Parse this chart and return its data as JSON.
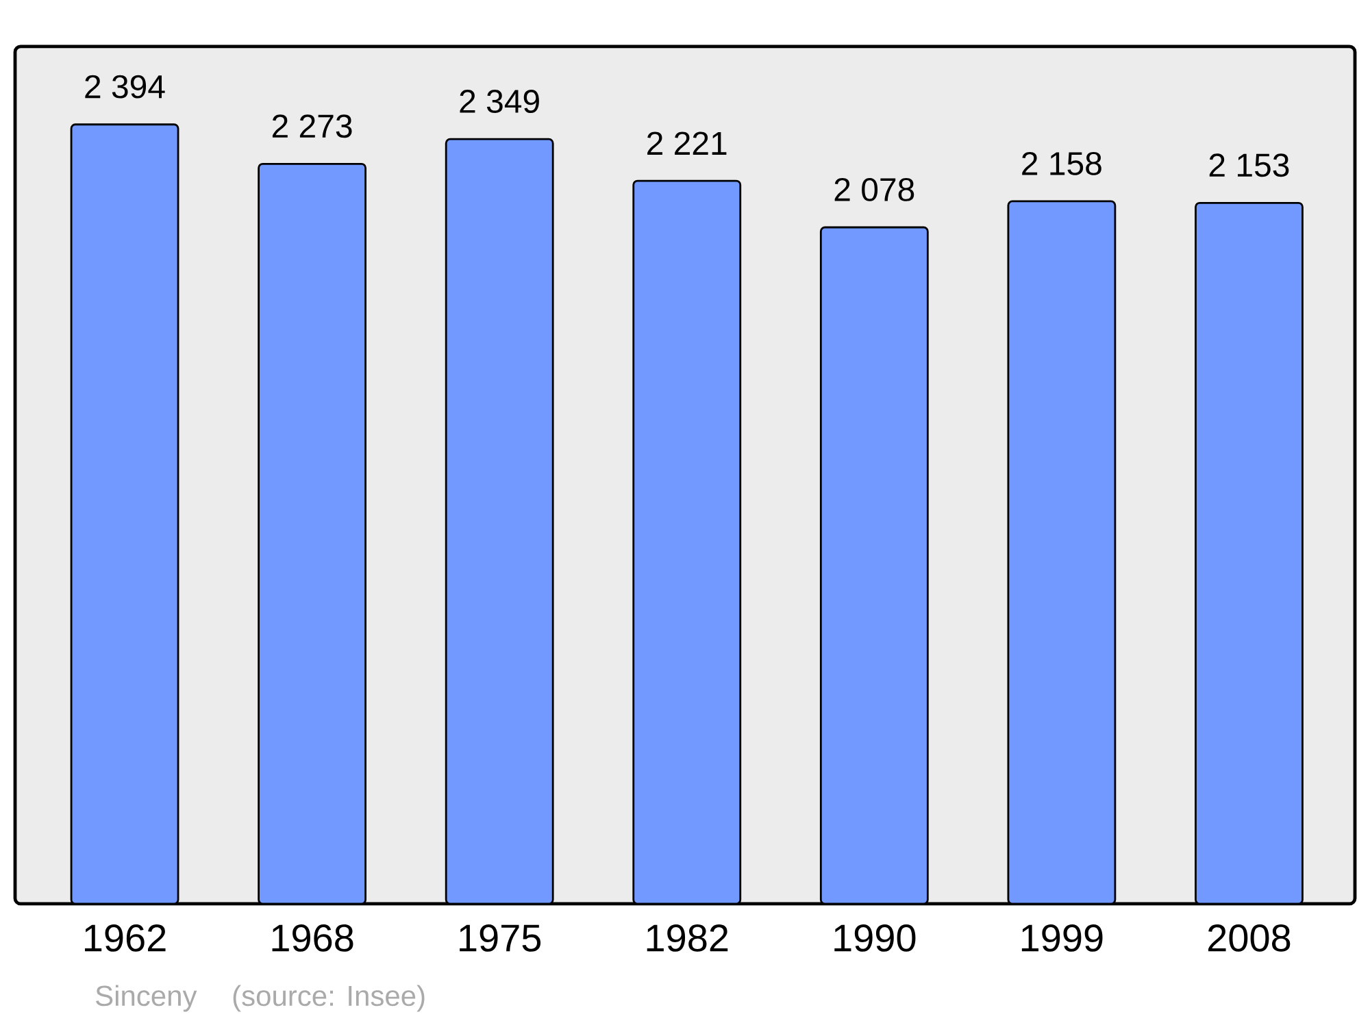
{
  "chart_data": {
    "type": "bar",
    "categories": [
      "1962",
      "1968",
      "1975",
      "1982",
      "1990",
      "1999",
      "2008"
    ],
    "values": [
      2394,
      2273,
      2349,
      2221,
      2078,
      2158,
      2153
    ],
    "value_labels": [
      "2 394",
      "2 273",
      "2 349",
      "2 221",
      "2 078",
      "2 158",
      "2 153"
    ],
    "color": "#7299ff",
    "annotations": [
      "Sinceny",
      "(source: Insee)"
    ]
  }
}
